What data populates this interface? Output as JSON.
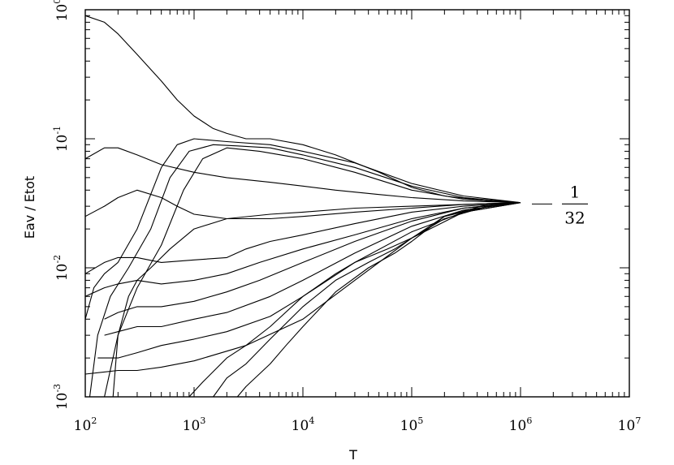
{
  "chart_data": {
    "type": "line",
    "xscale": "log",
    "yscale": "log",
    "xlim": [
      100,
      10000000
    ],
    "ylim": [
      0.001,
      1
    ],
    "xlabel": "T",
    "ylabel": "Eav / Etot",
    "grid": false,
    "x_ticks": [
      {
        "base": "10",
        "exp": "2"
      },
      {
        "base": "10",
        "exp": "3"
      },
      {
        "base": "10",
        "exp": "4"
      },
      {
        "base": "10",
        "exp": "5"
      },
      {
        "base": "10",
        "exp": "6"
      },
      {
        "base": "10",
        "exp": "7"
      }
    ],
    "y_ticks": [
      {
        "base": "10",
        "exp": "-3"
      },
      {
        "base": "10",
        "exp": "-2"
      },
      {
        "base": "10",
        "exp": "-1"
      },
      {
        "base": "10",
        "exp": "0"
      }
    ],
    "annotation": {
      "numerator": "1",
      "denominator": "32",
      "y": 0.03125
    },
    "series": [
      {
        "x": [
          100,
          150,
          200,
          300,
          500,
          700,
          1000,
          1500,
          2000,
          3000,
          5000,
          10000,
          20000,
          50000,
          100000,
          200000,
          500000,
          1000000
        ],
        "y": [
          0.9,
          0.8,
          0.65,
          0.45,
          0.28,
          0.2,
          0.15,
          0.12,
          0.11,
          0.1,
          0.1,
          0.09,
          0.075,
          0.055,
          0.042,
          0.036,
          0.033,
          0.032
        ]
      },
      {
        "x": [
          100,
          150,
          200,
          300,
          500,
          1000,
          2000,
          5000,
          10000,
          20000,
          50000,
          100000,
          300000,
          1000000
        ],
        "y": [
          0.07,
          0.085,
          0.085,
          0.075,
          0.063,
          0.055,
          0.05,
          0.046,
          0.043,
          0.04,
          0.037,
          0.035,
          0.033,
          0.032
        ]
      },
      {
        "x": [
          100,
          150,
          200,
          300,
          500,
          700,
          1000,
          2000,
          5000,
          10000,
          30000,
          100000,
          300000,
          1000000
        ],
        "y": [
          0.025,
          0.03,
          0.035,
          0.04,
          0.035,
          0.03,
          0.026,
          0.024,
          0.024,
          0.025,
          0.027,
          0.029,
          0.031,
          0.032
        ]
      },
      {
        "x": [
          100,
          120,
          150,
          200,
          300,
          500,
          700,
          1000,
          2000,
          5000,
          10000,
          30000,
          100000,
          300000,
          1000000
        ],
        "y": [
          0.004,
          0.007,
          0.009,
          0.011,
          0.02,
          0.06,
          0.09,
          0.1,
          0.095,
          0.09,
          0.08,
          0.065,
          0.045,
          0.036,
          0.032
        ]
      },
      {
        "x": [
          110,
          130,
          170,
          250,
          400,
          600,
          900,
          1500,
          2500,
          5000,
          10000,
          30000,
          100000,
          300000,
          1000000
        ],
        "y": [
          0.001,
          0.003,
          0.006,
          0.01,
          0.02,
          0.05,
          0.08,
          0.09,
          0.088,
          0.085,
          0.075,
          0.06,
          0.043,
          0.035,
          0.032
        ]
      },
      {
        "x": [
          150,
          200,
          300,
          500,
          800,
          1200,
          2000,
          4000,
          10000,
          30000,
          100000,
          300000,
          1000000
        ],
        "y": [
          0.001,
          0.003,
          0.007,
          0.015,
          0.04,
          0.07,
          0.085,
          0.08,
          0.07,
          0.055,
          0.04,
          0.034,
          0.032
        ]
      },
      {
        "x": [
          100,
          150,
          200,
          300,
          500,
          1000,
          2000,
          3000,
          5000,
          10000,
          30000,
          100000,
          300000,
          1000000
        ],
        "y": [
          0.009,
          0.011,
          0.012,
          0.012,
          0.011,
          0.0115,
          0.012,
          0.014,
          0.016,
          0.018,
          0.022,
          0.027,
          0.03,
          0.032
        ]
      },
      {
        "x": [
          100,
          150,
          200,
          300,
          500,
          1000,
          2000,
          4000,
          10000,
          30000,
          100000,
          300000,
          1000000
        ],
        "y": [
          0.006,
          0.007,
          0.0075,
          0.008,
          0.0075,
          0.008,
          0.009,
          0.011,
          0.014,
          0.018,
          0.024,
          0.029,
          0.032
        ]
      },
      {
        "x": [
          150,
          200,
          300,
          500,
          1000,
          2000,
          4000,
          10000,
          30000,
          100000,
          300000,
          1000000
        ],
        "y": [
          0.004,
          0.0045,
          0.005,
          0.005,
          0.0055,
          0.0065,
          0.008,
          0.011,
          0.016,
          0.023,
          0.029,
          0.032
        ]
      },
      {
        "x": [
          150,
          200,
          300,
          500,
          1000,
          2000,
          5000,
          10000,
          30000,
          100000,
          300000,
          1000000
        ],
        "y": [
          0.003,
          0.0032,
          0.0035,
          0.0035,
          0.004,
          0.0045,
          0.006,
          0.008,
          0.013,
          0.021,
          0.028,
          0.032
        ]
      },
      {
        "x": [
          130,
          200,
          300,
          500,
          1000,
          2000,
          5000,
          10000,
          30000,
          100000,
          300000,
          1000000
        ],
        "y": [
          0.002,
          0.002,
          0.0022,
          0.0025,
          0.0028,
          0.0032,
          0.0042,
          0.006,
          0.011,
          0.019,
          0.027,
          0.032
        ]
      },
      {
        "x": [
          900,
          1200,
          2000,
          3000,
          5000,
          10000,
          20000,
          30000,
          60000,
          100000,
          200000,
          500000,
          1000000
        ],
        "y": [
          0.001,
          0.0013,
          0.002,
          0.0025,
          0.0035,
          0.006,
          0.009,
          0.011,
          0.014,
          0.017,
          0.024,
          0.03,
          0.032
        ]
      },
      {
        "x": [
          1500,
          2000,
          3000,
          5000,
          10000,
          20000,
          40000,
          70000,
          100000,
          200000,
          500000,
          1000000
        ],
        "y": [
          0.001,
          0.0014,
          0.0018,
          0.0028,
          0.005,
          0.008,
          0.011,
          0.014,
          0.017,
          0.025,
          0.03,
          0.032
        ]
      },
      {
        "x": [
          2500,
          3000,
          5000,
          7000,
          10000,
          20000,
          40000,
          70000,
          100000,
          200000,
          500000,
          1000000
        ],
        "y": [
          0.001,
          0.0012,
          0.0018,
          0.0025,
          0.0035,
          0.0065,
          0.01,
          0.013,
          0.016,
          0.025,
          0.031,
          0.032
        ]
      },
      {
        "x": [
          180,
          200,
          250,
          300,
          400,
          600,
          1000,
          2000,
          5000,
          10000,
          30000,
          100000,
          300000,
          1000000
        ],
        "y": [
          0.001,
          0.003,
          0.006,
          0.008,
          0.01,
          0.014,
          0.02,
          0.024,
          0.026,
          0.027,
          0.029,
          0.03,
          0.031,
          0.032
        ]
      },
      {
        "x": [
          100,
          200,
          300,
          500,
          1000,
          3000,
          10000,
          30000,
          100000,
          300000,
          1000000
        ],
        "y": [
          0.0015,
          0.0016,
          0.0016,
          0.0017,
          0.0019,
          0.0025,
          0.004,
          0.008,
          0.017,
          0.027,
          0.032
        ]
      }
    ]
  }
}
